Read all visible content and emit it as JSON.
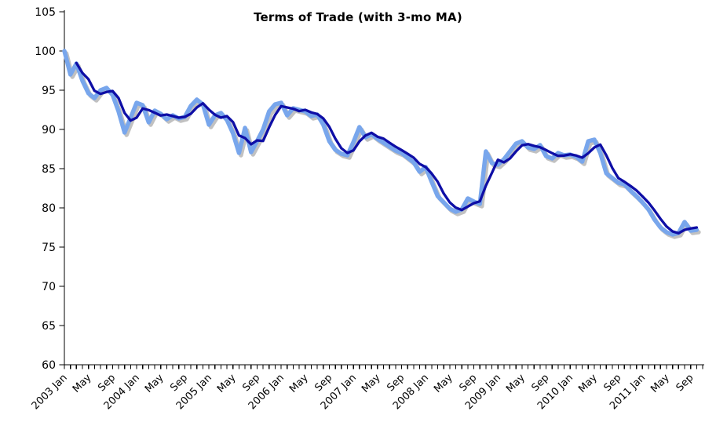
{
  "page": {
    "background": "#FFFFFF"
  },
  "chart_data": {
    "type": "line",
    "title": "Terms of Trade (with 3-mo MA)",
    "xlabel": "",
    "ylabel": "",
    "x": {
      "start_month": "2003-01",
      "end_month": "2011-10",
      "minor_tick_every_months": 1,
      "label_every_months": 4,
      "tick_labels": [
        "2003 Jan",
        "May",
        "Sep",
        "2004 Jan",
        "May",
        "Sep",
        "2005 Jan",
        "May",
        "Sep",
        "2006 Jan",
        "May",
        "Sep",
        "2007 Jan",
        "May",
        "Sep",
        "2008 Jan",
        "May",
        "Sep",
        "2009 Jan",
        "May",
        "Sep",
        "2010 Jan",
        "May",
        "Sep",
        "2011 Jan",
        "May",
        "Sep"
      ],
      "label_rotation_deg": -45
    },
    "y": {
      "min": 60,
      "max": 105,
      "tick_step": 5,
      "tick_labels": [
        "60",
        "65",
        "70",
        "75",
        "80",
        "85",
        "90",
        "95",
        "100",
        "105"
      ]
    },
    "grid": "off",
    "legend": "none",
    "series": [
      {
        "name": "Terms of Trade",
        "color": "#78A6EC",
        "shadow_color": "#979797",
        "line_width": 5.5,
        "values": [
          100.0,
          97.0,
          98.4,
          96.2,
          94.6,
          94.0,
          95.0,
          95.3,
          94.4,
          92.3,
          89.6,
          91.5,
          93.4,
          93.1,
          90.9,
          92.4,
          92.0,
          91.3,
          91.8,
          91.4,
          91.6,
          93.0,
          93.8,
          93.2,
          90.6,
          91.8,
          92.1,
          91.2,
          89.5,
          87.0,
          90.2,
          87.1,
          88.5,
          90.0,
          92.3,
          93.2,
          93.4,
          91.8,
          92.7,
          92.5,
          92.3,
          91.7,
          91.9,
          90.6,
          88.5,
          87.4,
          86.9,
          86.7,
          88.4,
          90.3,
          89.0,
          89.4,
          88.8,
          88.3,
          87.8,
          87.3,
          87.0,
          86.4,
          85.8,
          84.6,
          85.2,
          83.3,
          81.5,
          80.7,
          79.9,
          79.5,
          79.8,
          81.2,
          80.8,
          80.5,
          87.2,
          85.7,
          85.5,
          86.2,
          87.2,
          88.2,
          88.5,
          87.7,
          87.5,
          88.0,
          86.6,
          86.3,
          87.0,
          86.7,
          86.8,
          86.5,
          85.9,
          88.5,
          88.7,
          87.0,
          84.4,
          83.8,
          83.2,
          83.0,
          82.2,
          81.5,
          80.7,
          79.8,
          78.5,
          77.5,
          76.9,
          76.6,
          76.8,
          78.2,
          77.1,
          77.2
        ]
      },
      {
        "name": "3-mo MA",
        "color": "#0E0EA6",
        "line_width": 3.3,
        "derived": "3-month trailing moving average of Terms of Trade, plotted from 2003 Mar onward"
      }
    ],
    "axis_color": "#000000",
    "text_color": "#000000"
  }
}
